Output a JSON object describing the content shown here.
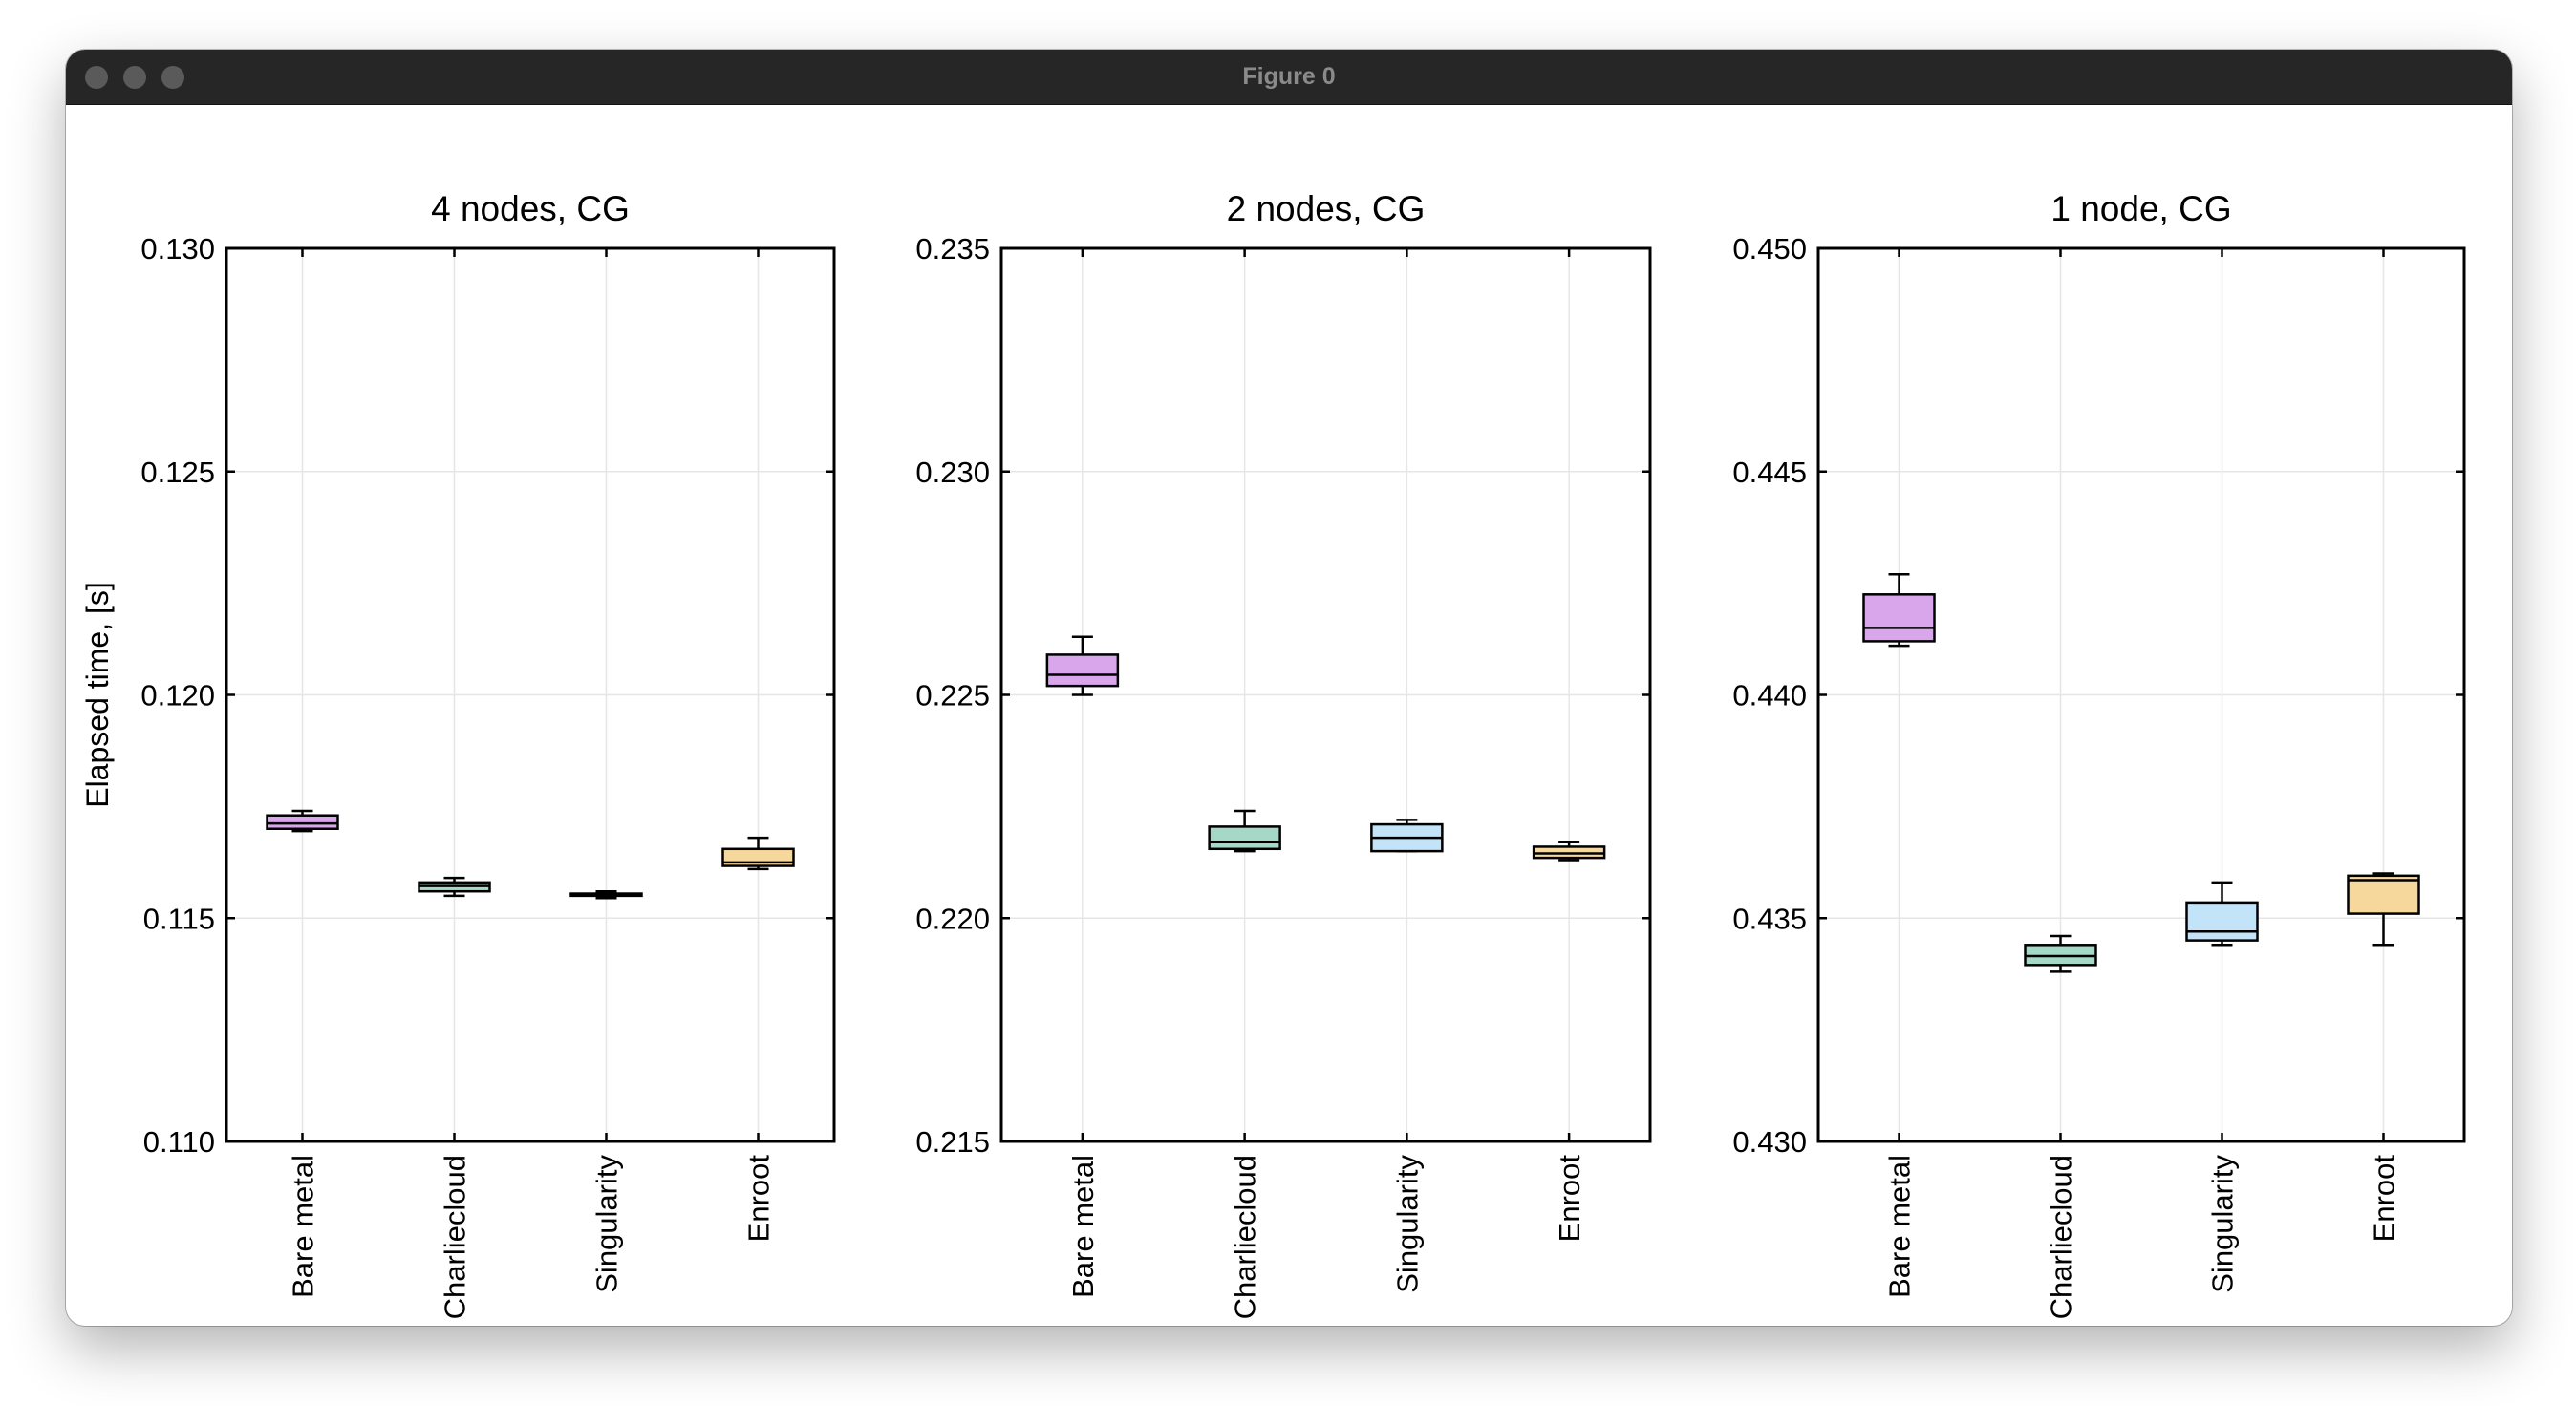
{
  "window": {
    "title": "Figure 0"
  },
  "chart_data": [
    {
      "type": "box",
      "title": "4 nodes, CG",
      "ylabel": "Elapsed time, [s]",
      "ylim": [
        0.11,
        0.13
      ],
      "yticks": [
        "0.130",
        "0.125",
        "0.120",
        "0.115",
        "0.110"
      ],
      "categories": [
        "Bare metal",
        "Charliecloud",
        "Singularity",
        "Enroot"
      ],
      "boxes": [
        {
          "whisker_low": 0.11695,
          "q1": 0.117,
          "median": 0.11712,
          "q3": 0.1173,
          "whisker_high": 0.1174
        },
        {
          "whisker_low": 0.1155,
          "q1": 0.1156,
          "median": 0.11572,
          "q3": 0.1158,
          "whisker_high": 0.1159
        },
        {
          "whisker_low": 0.11545,
          "q1": 0.1155,
          "median": 0.11552,
          "q3": 0.11555,
          "whisker_high": 0.1156
        },
        {
          "whisker_low": 0.1161,
          "q1": 0.11617,
          "median": 0.11625,
          "q3": 0.11655,
          "whisker_high": 0.1168
        }
      ]
    },
    {
      "type": "box",
      "title": "2 nodes, CG",
      "ylabel": "",
      "ylim": [
        0.215,
        0.235
      ],
      "yticks": [
        "0.235",
        "0.230",
        "0.225",
        "0.220",
        "0.215"
      ],
      "categories": [
        "Bare metal",
        "Charliecloud",
        "Singularity",
        "Enroot"
      ],
      "boxes": [
        {
          "whisker_low": 0.225,
          "q1": 0.2252,
          "median": 0.22545,
          "q3": 0.2259,
          "whisker_high": 0.2263
        },
        {
          "whisker_low": 0.2215,
          "q1": 0.22155,
          "median": 0.2217,
          "q3": 0.22205,
          "whisker_high": 0.2224
        },
        {
          "whisker_low": 0.2215,
          "q1": 0.2215,
          "median": 0.2218,
          "q3": 0.2221,
          "whisker_high": 0.2222
        },
        {
          "whisker_low": 0.2213,
          "q1": 0.22135,
          "median": 0.22145,
          "q3": 0.2216,
          "whisker_high": 0.2217
        }
      ]
    },
    {
      "type": "box",
      "title": "1 node, CG",
      "ylabel": "",
      "ylim": [
        0.43,
        0.45
      ],
      "yticks": [
        "0.450",
        "0.445",
        "0.440",
        "0.435",
        "0.430"
      ],
      "categories": [
        "Bare metal",
        "Charliecloud",
        "Singularity",
        "Enroot"
      ],
      "boxes": [
        {
          "whisker_low": 0.4411,
          "q1": 0.4412,
          "median": 0.4415,
          "q3": 0.44225,
          "whisker_high": 0.4427
        },
        {
          "whisker_low": 0.4338,
          "q1": 0.43395,
          "median": 0.43415,
          "q3": 0.4344,
          "whisker_high": 0.4346
        },
        {
          "whisker_low": 0.4344,
          "q1": 0.4345,
          "median": 0.4347,
          "q3": 0.43535,
          "whisker_high": 0.4358
        },
        {
          "whisker_low": 0.4344,
          "q1": 0.4351,
          "median": 0.43585,
          "q3": 0.43595,
          "whisker_high": 0.436
        }
      ]
    }
  ],
  "colors": {
    "Bare metal": "#d9a5eb",
    "Charliecloud": "#a6d8c8",
    "Singularity": "#c3e3f8",
    "Enroot": "#f7d89c"
  }
}
